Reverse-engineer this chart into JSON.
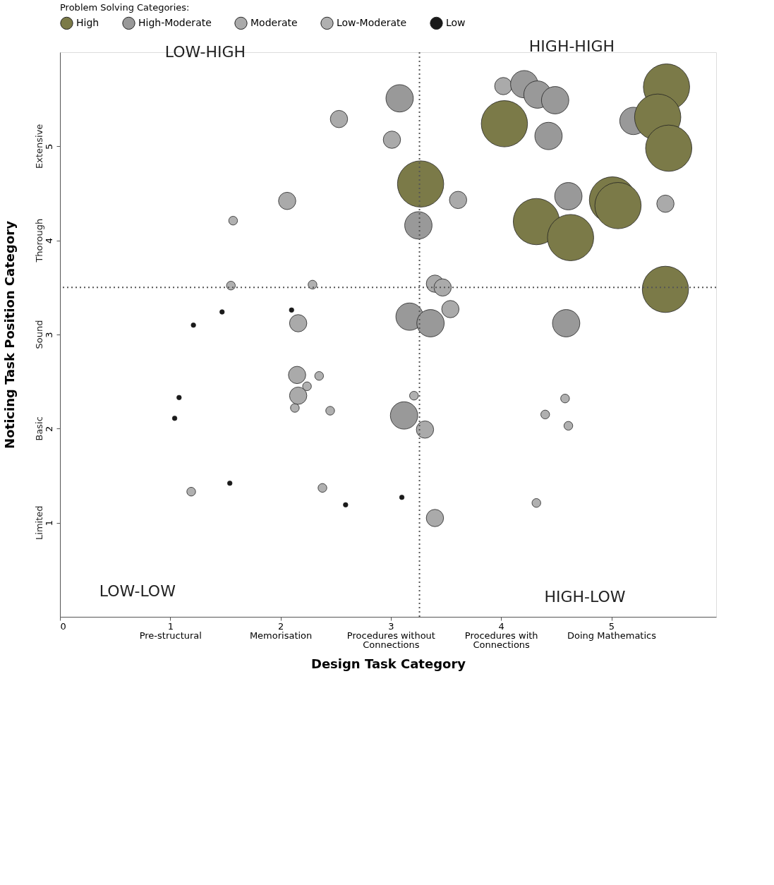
{
  "chart_data": {
    "type": "bubble",
    "xlabel": "Design Task Category",
    "ylabel": "Noticing Task Position Category",
    "legend_title": "Problem Solving Categories:",
    "legend": "top",
    "marker": "circle",
    "xlim": [
      0,
      5.95
    ],
    "ylim": [
      0,
      6
    ],
    "xticks": [
      0,
      {
        "value": 1,
        "label": "1\nPre-structural"
      },
      {
        "value": 2,
        "label": "2\nMemorisation"
      },
      {
        "value": 3,
        "label": "3\nProcedures without\nConnections"
      },
      {
        "value": 4,
        "label": "4\nProcedures with\nConnections"
      },
      {
        "value": 5,
        "label": "5\nDoing Mathematics"
      }
    ],
    "yticks": [
      1,
      2,
      3,
      4,
      5
    ],
    "ref_lines": [
      {
        "axis": "x",
        "value": 3.26,
        "line_style": "dotted",
        "color": "#555555"
      },
      {
        "axis": "y",
        "value": 3.5,
        "line_style": "dotted",
        "color": "#555555"
      }
    ],
    "annotations": [
      "LOW-HIGH",
      "HIGH-HIGH",
      "LOW-LOW",
      "HIGH-LOW",
      "Limited",
      "Basic",
      "Sound",
      "Thorough",
      "Extensive"
    ],
    "series": [
      {
        "name": "High",
        "color": "#7b7a48",
        "x": [
          3.27,
          4.03,
          5.5,
          5.42,
          5.52,
          4.32,
          4.63,
          5.01,
          5.06,
          5.49
        ],
        "values": [
          4.6,
          5.24,
          5.63,
          5.31,
          4.98,
          4.2,
          4.03,
          4.43,
          4.37,
          3.48
        ],
        "sizes": [
          1,
          1,
          1,
          1,
          1,
          1,
          1,
          1,
          1,
          1
        ]
      },
      {
        "name": "High-Moderate",
        "color": "#999999",
        "x": [
          3.08,
          4.21,
          4.33,
          4.49,
          4.43,
          5.2,
          4.61,
          3.25,
          3.17,
          3.36,
          4.59,
          3.12
        ],
        "values": [
          5.51,
          5.66,
          5.55,
          5.49,
          5.11,
          5.27,
          4.47,
          4.16,
          3.19,
          3.12,
          3.12,
          2.14
        ],
        "sizes": [
          0.35,
          0.35,
          0.35,
          0.35,
          0.35,
          0.35,
          0.35,
          0.35,
          0.35,
          0.35,
          0.35,
          0.35
        ]
      },
      {
        "name": "Moderate",
        "color": "#aaaaaa",
        "x": [
          4.02,
          5.49,
          3.61,
          3.01,
          2.53,
          2.06,
          3.4,
          3.47,
          3.54,
          2.16,
          2.15,
          2.16,
          3.31,
          3.4
        ],
        "values": [
          5.64,
          4.39,
          4.43,
          5.07,
          5.29,
          4.42,
          3.54,
          3.5,
          3.27,
          3.12,
          2.57,
          2.35,
          1.99,
          1.05
        ],
        "sizes": [
          0.14,
          0.14,
          0.14,
          0.14,
          0.14,
          0.14,
          0.14,
          0.14,
          0.14,
          0.14,
          0.14,
          0.14,
          0.14,
          0.14
        ]
      },
      {
        "name": "Low-Moderate",
        "color": "#b0b0b0",
        "x": [
          1.57,
          1.55,
          2.29,
          2.35,
          2.24,
          2.13,
          2.45,
          1.19,
          2.38,
          3.21,
          4.58,
          4.4,
          4.61,
          4.32
        ],
        "values": [
          4.21,
          3.52,
          3.53,
          2.56,
          2.45,
          2.22,
          2.19,
          1.33,
          1.37,
          2.35,
          2.32,
          2.15,
          2.03,
          1.21
        ],
        "sizes": [
          0.036,
          0.036,
          0.036,
          0.036,
          0.036,
          0.036,
          0.036,
          0.036,
          0.036,
          0.036,
          0.036,
          0.036,
          0.036,
          0.036
        ]
      },
      {
        "name": "Low",
        "color": "#1a1a1a",
        "x": [
          1.47,
          1.21,
          2.1,
          1.08,
          1.04,
          1.54,
          2.59,
          3.1
        ],
        "values": [
          3.24,
          3.1,
          3.26,
          2.33,
          2.11,
          1.42,
          1.19,
          1.27
        ],
        "sizes": [
          0.01,
          0.01,
          0.01,
          0.01,
          0.01,
          0.01,
          0.01,
          0.01
        ]
      }
    ]
  }
}
